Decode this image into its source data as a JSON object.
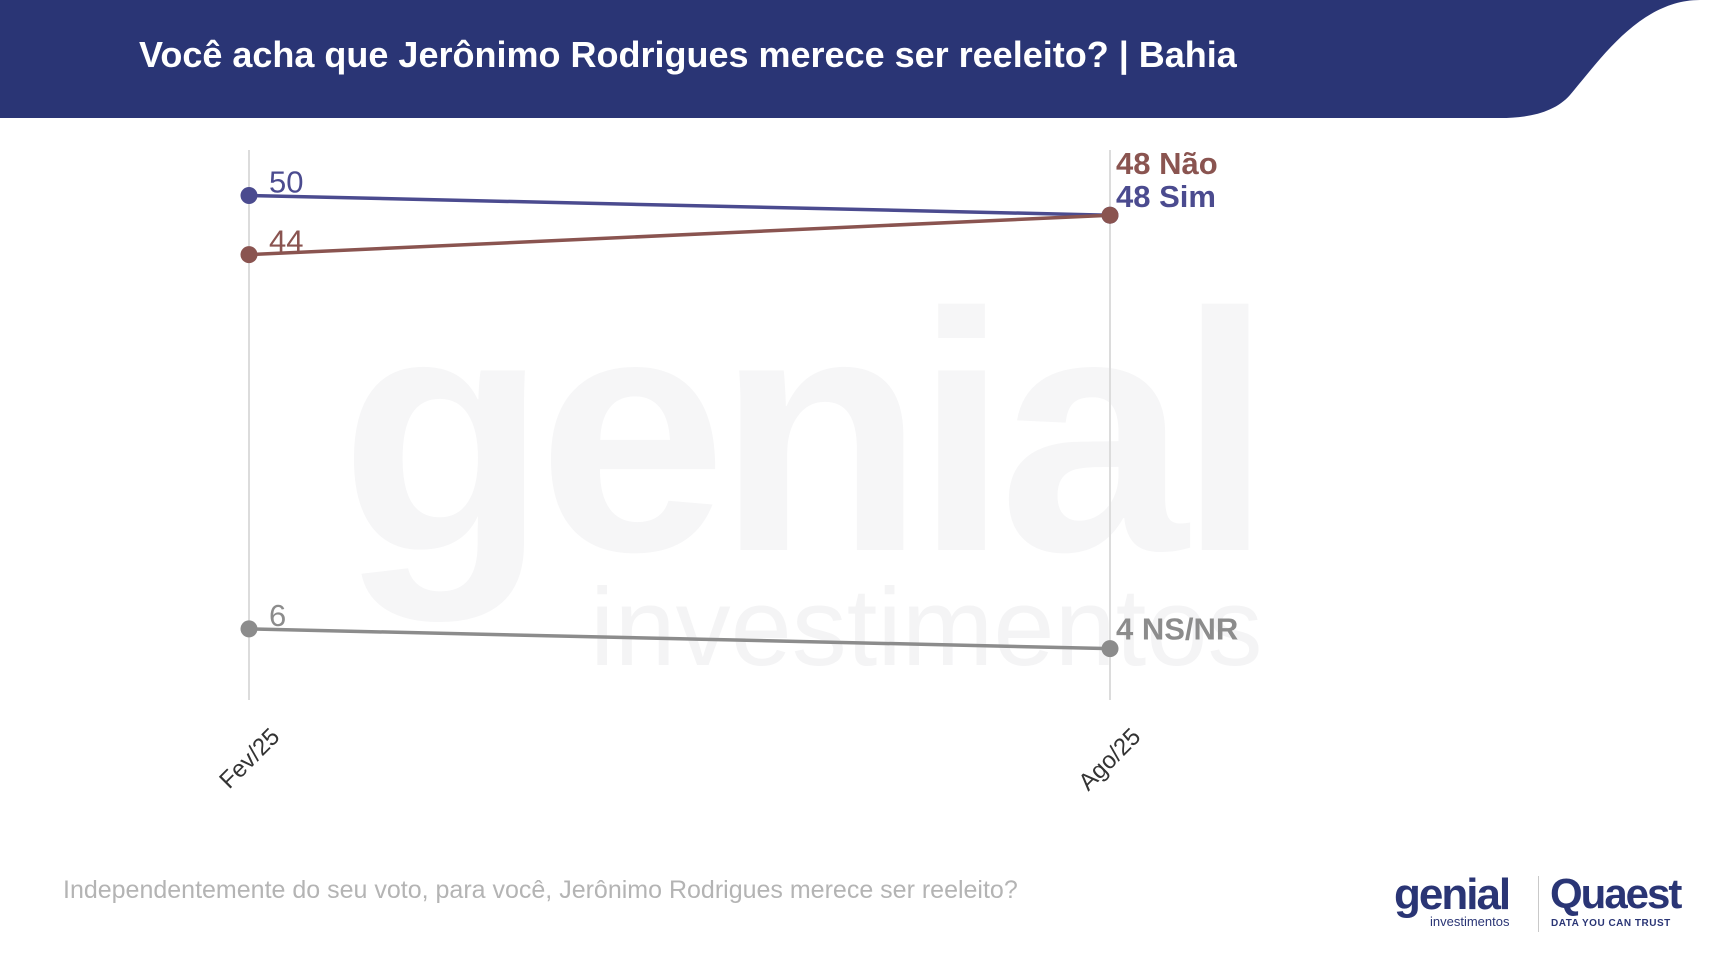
{
  "header": {
    "title": "Você acha que Jerônimo Rodrigues merece ser reeleito?  | Bahia"
  },
  "footnote": "Independentemente do seu voto, para você, Jerônimo Rodrigues merece ser reeleito?",
  "logos": {
    "genial": "genial",
    "genial_sub": "investimentos",
    "quaest": "Quaest",
    "quaest_sub": "DATA YOU CAN TRUST"
  },
  "watermark": {
    "word": "genial",
    "sub": "investimentos"
  },
  "colors": {
    "header_bg": "#2a3575",
    "sim": "#4b4b8f",
    "nao": "#8a5450",
    "nsnr": "#8c8c8c",
    "gridline": "#dcdcdc"
  },
  "chart_data": {
    "type": "line",
    "categories": [
      "Fev/25",
      "Ago/25"
    ],
    "ylim": [
      0,
      55
    ],
    "grid": "vertical",
    "series": [
      {
        "name": "Sim",
        "values": [
          50,
          48
        ],
        "start_label": "50",
        "end_label": "48 Sim",
        "color": "#4b4b8f"
      },
      {
        "name": "Não",
        "values": [
          44,
          48
        ],
        "start_label": "44",
        "end_label": "48 Não",
        "color": "#8a5450"
      },
      {
        "name": "NS/NR",
        "values": [
          6,
          4
        ],
        "start_label": "6",
        "end_label": "4 NS/NR",
        "color": "#8c8c8c"
      }
    ]
  }
}
